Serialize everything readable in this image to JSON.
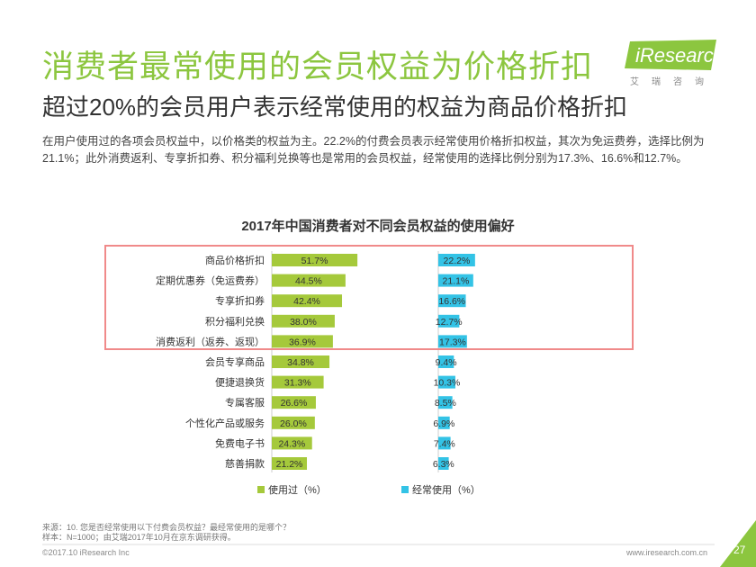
{
  "title": "消费者最常使用的会员权益为价格折扣",
  "subtitle": "超过20%的会员用户表示经常使用的权益为商品价格折扣",
  "intro": "在用户使用过的各项会员权益中，以价格类的权益为主。22.2%的付费会员表示经常使用价格折扣权益，其次为免运费券，选择比例为21.1%；此外消费返利、专享折扣券、积分福利兑换等也是常用的会员权益，经常使用的选择比例分别为17.3%、16.6%和12.7%。",
  "logo": {
    "text": "iResearch",
    "sub": "艾瑞咨询"
  },
  "chart_data": {
    "type": "bar",
    "title": "2017年中国消费者对不同会员权益的使用偏好",
    "categories": [
      "商品价格折扣",
      "定期优惠券（免运费券）",
      "专享折扣券",
      "积分福利兑换",
      "消费返利（返券、返现）",
      "会员专享商品",
      "便捷退换货",
      "专属客服",
      "个性化产品或服务",
      "免费电子书",
      "慈善捐款"
    ],
    "series": [
      {
        "name": "使用过（%）",
        "color": "#a5c93b",
        "values": [
          51.7,
          44.5,
          42.4,
          38.0,
          36.9,
          34.8,
          31.3,
          26.6,
          26.0,
          24.3,
          21.2
        ]
      },
      {
        "name": "经常使用（%）",
        "color": "#33c3e6",
        "values": [
          22.2,
          21.1,
          16.6,
          12.7,
          17.3,
          9.4,
          10.3,
          8.5,
          6.9,
          7.4,
          6.3
        ]
      }
    ],
    "value_suffix": "%",
    "highlighted_rows": 5,
    "legend_position": "bottom"
  },
  "source": {
    "line1": "来源：10. 您是否经常使用以下付费会员权益？最经常使用的是哪个？",
    "line2": "样本：N=1000；由艾瑞2017年10月在京东调研获得。"
  },
  "footer": {
    "copyright": "©2017.10 iResearch Inc",
    "website": "www.iresearch.com.cn",
    "page": "27"
  }
}
